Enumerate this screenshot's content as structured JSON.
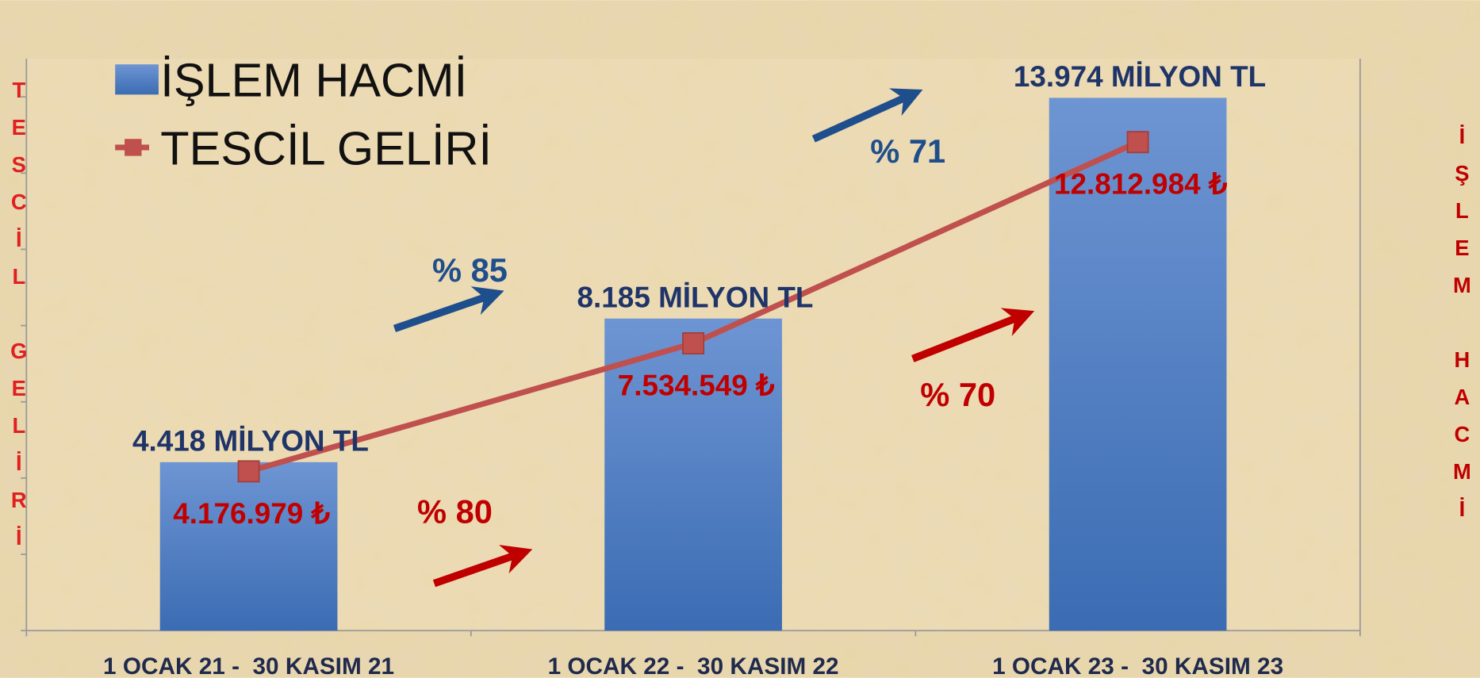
{
  "chart_data": {
    "type": "bar+line",
    "categories": [
      "1 OCAK 21 -  30 KASIM 21",
      "1 OCAK 22 -  30 KASIM 22",
      "1 OCAK 23 -  30 KASIM 23"
    ],
    "series": [
      {
        "name": "İŞLEM HACMİ",
        "type": "bar",
        "axis": "y2",
        "color": "#4f81bd",
        "values": [
          4418,
          8185,
          13974
        ],
        "value_labels": [
          "4.418 MİLYON TL",
          "8.185 MİLYON TL",
          "13.974 MİLYON TL"
        ]
      },
      {
        "name": "TESCİL GELİRİ",
        "type": "line",
        "axis": "y",
        "color": "#c0504d",
        "values": [
          4176979,
          7534549,
          12812984
        ],
        "value_labels": [
          "4.176.979 ₺",
          "7.534.549 ₺",
          "12.812.984 ₺"
        ]
      }
    ],
    "ylabel": "TESCİL GELİRİ",
    "y2label": "İŞLEM HACMİ",
    "ylim": [
      0,
      15000000
    ],
    "yticks": [
      0,
      2000000,
      4000000,
      6000000,
      8000000,
      10000000,
      12000000,
      14000000
    ],
    "y2lim": [
      0,
      15000
    ],
    "legend": "upper left",
    "annotations": [
      {
        "text": "% 85",
        "color": "#1f4e8c"
      },
      {
        "text": "% 71",
        "color": "#1f4e8c"
      },
      {
        "text": "% 80",
        "color": "#c00000"
      },
      {
        "text": "% 70",
        "color": "#c00000"
      }
    ]
  }
}
